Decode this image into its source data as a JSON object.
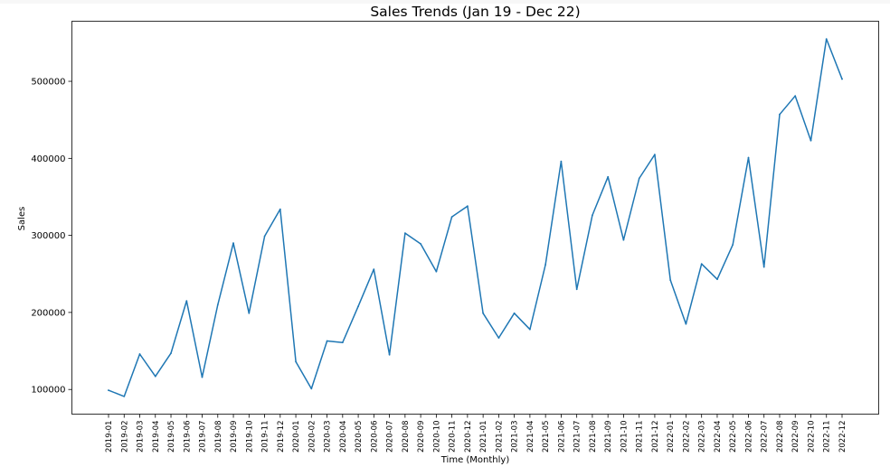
{
  "chart_data": {
    "type": "line",
    "title": "Sales Trends (Jan 19 - Dec 22)",
    "xlabel": "Time (Monthly)",
    "ylabel": "Sales",
    "ylim": [
      68000,
      578000
    ],
    "yticks": [
      100000,
      200000,
      300000,
      400000,
      500000
    ],
    "ytick_labels": [
      "100000",
      "200000",
      "300000",
      "400000",
      "500000"
    ],
    "grid": false,
    "legend": "none",
    "line_color": "#1f77b4",
    "categories": [
      "2019-01",
      "2019-02",
      "2019-03",
      "2019-04",
      "2019-05",
      "2019-06",
      "2019-07",
      "2019-08",
      "2019-09",
      "2019-10",
      "2019-11",
      "2019-12",
      "2020-01",
      "2020-02",
      "2020-03",
      "2020-04",
      "2020-05",
      "2020-06",
      "2020-07",
      "2020-08",
      "2020-09",
      "2020-10",
      "2020-11",
      "2020-12",
      "2021-01",
      "2021-02",
      "2021-03",
      "2021-04",
      "2021-05",
      "2021-06",
      "2021-07",
      "2021-08",
      "2021-09",
      "2021-10",
      "2021-11",
      "2021-12",
      "2022-01",
      "2022-02",
      "2022-03",
      "2022-04",
      "2022-05",
      "2022-06",
      "2022-07",
      "2022-08",
      "2022-09",
      "2022-10",
      "2022-11",
      "2022-12"
    ],
    "series": [
      {
        "values": [
          99000,
          91000,
          146000,
          117000,
          147000,
          215000,
          116000,
          210000,
          290000,
          199000,
          299000,
          334000,
          136000,
          101000,
          163000,
          161000,
          208000,
          256000,
          145000,
          303000,
          289000,
          253000,
          324000,
          338000,
          199000,
          167000,
          199000,
          178000,
          262000,
          396000,
          230000,
          326000,
          376000,
          294000,
          374000,
          405000,
          242000,
          185000,
          263000,
          243000,
          288000,
          401000,
          259000,
          457000,
          481000,
          423000,
          555000,
          503000
        ]
      }
    ]
  }
}
